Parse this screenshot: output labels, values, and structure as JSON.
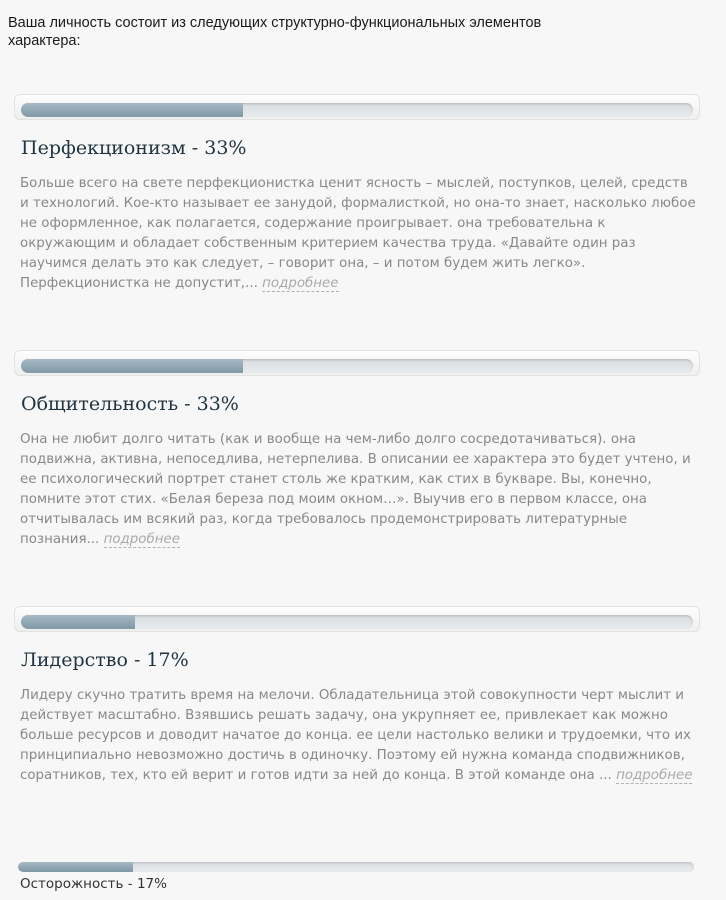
{
  "intro": "Ваша личность состоит из следующих структурно-функциональных элементов характера:",
  "more_label": "подробнее",
  "sections": [
    {
      "title": "Перфекционизм - 33%",
      "progress_percent": 33,
      "text": "Больше всего на свете перфекционистка ценит ясность – мыслей, поступков, целей, средств и технологий. Кое-кто называет ее занудой, формалисткой, но она-то знает, насколько любое не оформленное, как полагается, содержание проигрывает. она требовательна к окружающим и обладает собственным критерием качества труда. «Давайте один раз научимся делать это как следует, – говорит она, – и потом будем жить легко». Перфекционистка не допустит,..."
    },
    {
      "title": "Общительность - 33%",
      "progress_percent": 33,
      "text": "Она не любит долго читать (как и вообще на чем-либо долго сосредотачиваться). она подвижна, активна, непоседлива, нетерпелива. В описании ее характера это будет учтено, и ее психологический портрет станет столь же кратким, как стих в букваре. Вы, конечно, помните этот стих. «Белая береза под моим окном…». Выучив его в первом классе, она отчитывалась им всякий раз, когда требовалось продемонстрировать литературные познания..."
    },
    {
      "title": "Лидерство - 17%",
      "progress_percent": 17,
      "text": "Лидеру скучно тратить время на мелочи. Обладательница этой совокупности черт мыслит и действует масштабно. Взявшись решать задачу, она укрупняет ее, привлекает как можно больше ресурсов и доводит начатое до конца. ее цели настолько велики и трудоемки, что их принципиально невозможно достичь в одиночку. Поэтому ей нужна команда сподвижников, соратников, тех, кто ей верит и готов идти за ней до конца. В этой команде она ..."
    }
  ],
  "last_section": {
    "title": "Осторожность - 17%",
    "progress_percent": 17
  }
}
